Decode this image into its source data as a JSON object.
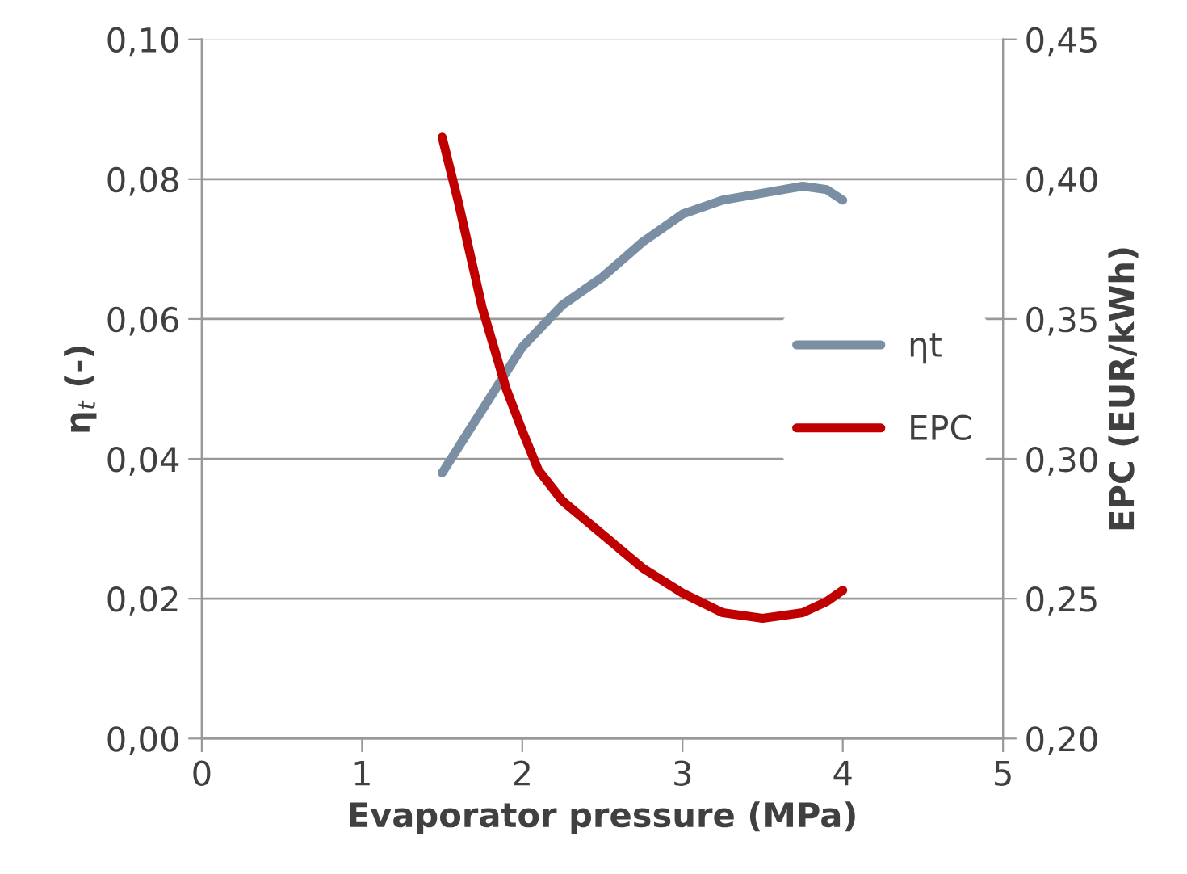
{
  "chart_data": {
    "type": "line",
    "xlabel": "Evaporator pressure (MPa)",
    "ylabel": "η$_{t}$ (-)",
    "y2label": "EPC (EUR/kWh)",
    "xlim": [
      0,
      5
    ],
    "xticks": [
      0,
      1,
      2,
      3,
      4,
      5
    ],
    "ylim": [
      0,
      0.1
    ],
    "yticks": [
      {
        "value": 0,
        "label": "0,00"
      },
      {
        "value": 0.02,
        "label": "0,02"
      },
      {
        "value": 0.04,
        "label": "0,04"
      },
      {
        "value": 0.06,
        "label": "0,06"
      },
      {
        "value": 0.08,
        "label": "0,08"
      },
      {
        "value": 0.1,
        "label": "0,10"
      }
    ],
    "y2lim": [
      0.2,
      0.45
    ],
    "y2ticks": [
      {
        "value": 0.2,
        "label": "0,20"
      },
      {
        "value": 0.25,
        "label": "0,25"
      },
      {
        "value": 0.3,
        "label": "0,30"
      },
      {
        "value": 0.35,
        "label": "0,35"
      },
      {
        "value": 0.4,
        "label": "0,40"
      },
      {
        "value": 0.45,
        "label": "0,45"
      }
    ],
    "grid": "y",
    "legend": "right",
    "marker": "none",
    "line_style": "solid",
    "series": [
      {
        "name": "ηt",
        "color": "#7a8fa3",
        "x": [
          1.5,
          1.75,
          2,
          2.25,
          2.5,
          2.75,
          3,
          3.25,
          3.5,
          3.75,
          3.9,
          4
        ],
        "values": [
          0.038,
          0.047,
          0.056,
          0.062,
          0.066,
          0.071,
          0.075,
          0.077,
          0.078,
          0.079,
          0.0785,
          0.077
        ]
      },
      {
        "name": "EPC",
        "color": "#c00000",
        "axis": "y2",
        "x": [
          1.5,
          1.6,
          1.75,
          1.9,
          2,
          2.1,
          2.25,
          2.5,
          2.75,
          3,
          3.25,
          3.5,
          3.75,
          3.9,
          4
        ],
        "values": [
          0.415,
          0.392,
          0.354,
          0.325,
          0.31,
          0.296,
          0.285,
          0.273,
          0.261,
          0.252,
          0.245,
          0.243,
          0.245,
          0.249,
          0.253
        ]
      }
    ]
  }
}
